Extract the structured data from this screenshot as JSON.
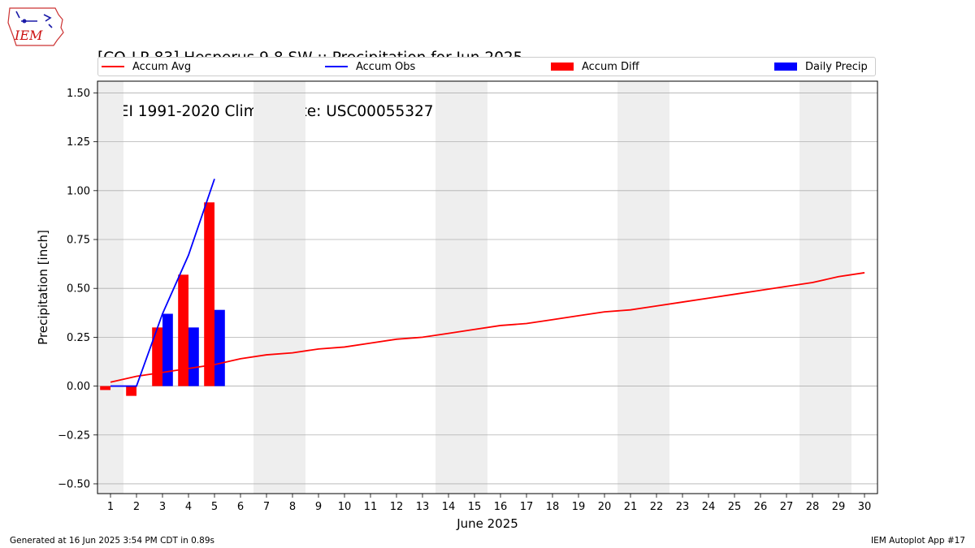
{
  "title_line1": "[CO-LP-83] Hesperus 9.8 SW :: Precipitation for Jun 2025",
  "title_line2": "NCEI 1991-2020 Climate Site: USC00055327",
  "logo_text": "IEM",
  "footer_left": "Generated at 16 Jun 2025 3:54 PM CDT in 0.89s",
  "footer_right": "IEM Autoplot App #17",
  "colors": {
    "avg": "#ff0000",
    "obs": "#0000ff",
    "diff": "#ff0000",
    "daily": "#0000ff",
    "weekend": "#eeeeee",
    "grid": "#b0b0b0"
  },
  "legend": [
    {
      "label": "Accum Avg",
      "kind": "line",
      "color": "#ff0000"
    },
    {
      "label": "Accum Obs",
      "kind": "line",
      "color": "#0000ff"
    },
    {
      "label": "Accum Diff",
      "kind": "box",
      "color": "#ff0000"
    },
    {
      "label": "Daily Precip",
      "kind": "box",
      "color": "#0000ff"
    }
  ],
  "chart_data": {
    "type": "bar",
    "xlabel": "June 2025",
    "ylabel": "Precipitation [inch]",
    "xlim": [
      0.5,
      30.5
    ],
    "ylim": [
      -0.55,
      1.56
    ],
    "x_ticks": [
      1,
      2,
      3,
      4,
      5,
      6,
      7,
      8,
      9,
      10,
      11,
      12,
      13,
      14,
      15,
      16,
      17,
      18,
      19,
      20,
      21,
      22,
      23,
      24,
      25,
      26,
      27,
      28,
      29,
      30
    ],
    "y_ticks": [
      -0.5,
      -0.25,
      0.0,
      0.25,
      0.5,
      0.75,
      1.0,
      1.25,
      1.5
    ],
    "y_tick_labels": [
      "−0.50",
      "−0.25",
      "0.00",
      "0.25",
      "0.50",
      "0.75",
      "1.00",
      "1.25",
      "1.50"
    ],
    "grid": "horizontal",
    "legend_position": "top",
    "weekend_shading": [
      [
        0.5,
        1.5
      ],
      [
        6.5,
        8.5
      ],
      [
        13.5,
        15.5
      ],
      [
        20.5,
        22.5
      ],
      [
        27.5,
        29.5
      ]
    ],
    "series": [
      {
        "name": "Accum Avg",
        "kind": "line",
        "x": [
          1,
          2,
          3,
          4,
          5,
          6,
          7,
          8,
          9,
          10,
          11,
          12,
          13,
          14,
          15,
          16,
          17,
          18,
          19,
          20,
          21,
          22,
          23,
          24,
          25,
          26,
          27,
          28,
          29,
          30
        ],
        "values": [
          0.02,
          0.05,
          0.07,
          0.09,
          0.11,
          0.14,
          0.16,
          0.17,
          0.19,
          0.2,
          0.22,
          0.24,
          0.25,
          0.27,
          0.29,
          0.31,
          0.32,
          0.34,
          0.36,
          0.38,
          0.39,
          0.41,
          0.43,
          0.45,
          0.47,
          0.49,
          0.51,
          0.53,
          0.56,
          0.58
        ]
      },
      {
        "name": "Accum Obs",
        "kind": "line",
        "x": [
          1,
          2,
          3,
          4,
          5
        ],
        "values": [
          0.0,
          0.0,
          0.37,
          0.67,
          1.06
        ]
      },
      {
        "name": "Accum Diff",
        "kind": "bar",
        "x": [
          1,
          2,
          3,
          4,
          5
        ],
        "values": [
          -0.02,
          -0.05,
          0.3,
          0.57,
          0.94
        ]
      },
      {
        "name": "Daily Precip",
        "kind": "bar",
        "x": [
          1,
          2,
          3,
          4,
          5
        ],
        "values": [
          0.0,
          0.0,
          0.37,
          0.3,
          0.39
        ]
      }
    ]
  }
}
